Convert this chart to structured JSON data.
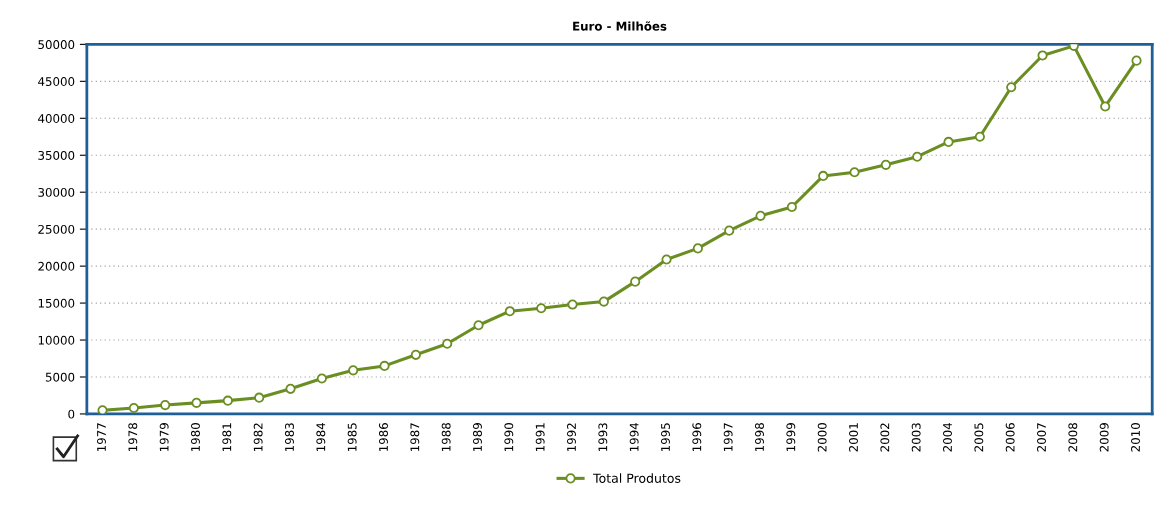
{
  "chart_data": {
    "type": "line",
    "title": "Euro - Milhões",
    "categories": [
      "1977",
      "1978",
      "1979",
      "1980",
      "1981",
      "1982",
      "1983",
      "1984",
      "1985",
      "1986",
      "1987",
      "1988",
      "1989",
      "1990",
      "1991",
      "1992",
      "1993",
      "1994",
      "1995",
      "1996",
      "1997",
      "1998",
      "1999",
      "2000",
      "2001",
      "2002",
      "2003",
      "2004",
      "2005",
      "2006",
      "2007",
      "2008",
      "2009",
      "2010"
    ],
    "series": [
      {
        "name": "Total Produtos",
        "color": "#6b8e23",
        "values": [
          500,
          800,
          1200,
          1500,
          1800,
          2200,
          3400,
          4800,
          5900,
          6500,
          8000,
          9500,
          12000,
          13900,
          14300,
          14800,
          15200,
          17900,
          20900,
          22400,
          24800,
          26800,
          28000,
          32200,
          32700,
          33700,
          34800,
          36800,
          37500,
          44200,
          48500,
          49800,
          41600,
          47800
        ]
      }
    ],
    "ylim": [
      0,
      50000
    ],
    "yticks": [
      0,
      5000,
      10000,
      15000,
      20000,
      25000,
      30000,
      35000,
      40000,
      45000,
      50000
    ],
    "grid": "y",
    "legend": "bottom",
    "marker": "circle",
    "line_style": "solid"
  }
}
